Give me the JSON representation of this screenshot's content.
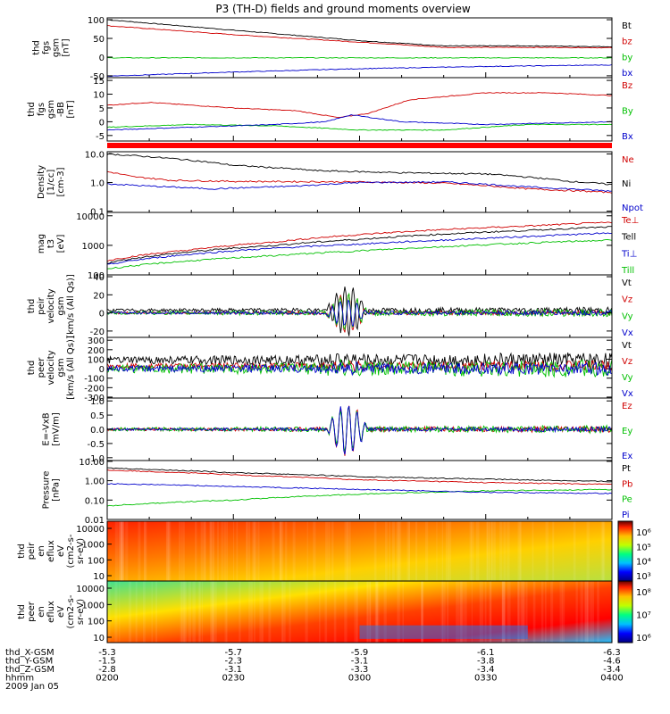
{
  "title": "P3 (TH-D) fields and ground moments overview",
  "chart_data": [
    {
      "id": "p1",
      "type": "line",
      "ylabel": [
        "thd",
        "fgs",
        "gsm",
        "[nT]"
      ],
      "yticks": [
        "100",
        "50",
        "0",
        "-50"
      ],
      "ylim": [
        -55,
        105
      ],
      "series": [
        {
          "name": "Bt",
          "color": "#000000",
          "x": [
            0,
            30,
            60,
            80,
            100,
            120
          ],
          "y": [
            100,
            72,
            44,
            30,
            30,
            28
          ]
        },
        {
          "name": "bz",
          "color": "#d00000",
          "x": [
            0,
            30,
            60,
            80,
            100,
            120
          ],
          "y": [
            84,
            60,
            40,
            26,
            26,
            25
          ]
        },
        {
          "name": "by",
          "color": "#00c000",
          "x": [
            0,
            60,
            120
          ],
          "y": [
            -2,
            -2,
            -2
          ]
        },
        {
          "name": "bx",
          "color": "#0000cc",
          "x": [
            0,
            30,
            60,
            90,
            120
          ],
          "y": [
            -51,
            -40,
            -31,
            -25,
            -21
          ]
        }
      ]
    },
    {
      "id": "p2",
      "type": "line",
      "ylabel": [
        "thd",
        "fgs",
        "gsm",
        "-BB",
        "[nT]"
      ],
      "yticks": [
        "15",
        "10",
        "5",
        "0",
        "-5"
      ],
      "ylim": [
        -7,
        16
      ],
      "series": [
        {
          "name": "Bz",
          "color": "#d00000",
          "x": [
            0,
            10,
            30,
            45,
            55,
            62,
            72,
            90,
            105,
            120
          ],
          "y": [
            6,
            7,
            5,
            4,
            1.5,
            3,
            8,
            10.5,
            10.5,
            9.5
          ]
        },
        {
          "name": "By",
          "color": "#00c000",
          "x": [
            0,
            20,
            40,
            60,
            80,
            100,
            120
          ],
          "y": [
            -2,
            -1,
            -1.5,
            -3,
            -3,
            -1,
            -1
          ]
        },
        {
          "name": "Bx",
          "color": "#0000cc",
          "x": [
            0,
            20,
            40,
            52,
            58,
            70,
            90,
            120
          ],
          "y": [
            -3,
            -2,
            -1,
            0,
            2.5,
            0,
            -1,
            0
          ]
        }
      ]
    },
    {
      "id": "p3",
      "type": "line",
      "log": true,
      "ylabel": [
        "Density",
        "[1/cc]",
        "[cm-3]"
      ],
      "yticks": [
        "10.0",
        "1.0",
        "0.1"
      ],
      "ylim": [
        0.09,
        12
      ],
      "series": [
        {
          "name": "Ne",
          "color": "#d00000",
          "x": [
            0,
            6,
            15,
            30,
            60,
            80,
            100,
            120
          ],
          "y": [
            2.4,
            1.6,
            1.2,
            1.1,
            1.05,
            0.95,
            0.6,
            0.45
          ]
        },
        {
          "name": "Ni",
          "color": "#000000",
          "x": [
            0,
            15,
            30,
            50,
            70,
            90,
            110,
            120
          ],
          "y": [
            10,
            7,
            4,
            2.6,
            2.2,
            2.0,
            1.1,
            0.85
          ]
        },
        {
          "name": "Npot",
          "color": "#0000cc",
          "x": [
            0,
            10,
            25,
            45,
            60,
            80,
            100,
            120
          ],
          "y": [
            0.9,
            0.75,
            0.6,
            0.75,
            1.0,
            1.05,
            0.7,
            0.5
          ]
        }
      ]
    },
    {
      "id": "p4",
      "type": "line",
      "log": true,
      "ylabel": [
        "mag",
        "t3",
        "[eV]"
      ],
      "yticks": [
        "10000",
        "1000",
        "100"
      ],
      "ylim": [
        100,
        13000
      ],
      "series": [
        {
          "name": "Te⊥",
          "color": "#d00000",
          "x": [
            0,
            20,
            40,
            60,
            80,
            100,
            120
          ],
          "y": [
            300,
            700,
            1300,
            2300,
            3400,
            4500,
            6000
          ]
        },
        {
          "name": "Tell",
          "color": "#000000",
          "x": [
            0,
            20,
            40,
            60,
            80,
            100,
            120
          ],
          "y": [
            250,
            600,
            1000,
            1600,
            2400,
            3200,
            4200
          ]
        },
        {
          "name": "Ti⊥",
          "color": "#0000cc",
          "x": [
            0,
            20,
            40,
            60,
            80,
            100,
            120
          ],
          "y": [
            220,
            500,
            800,
            1100,
            1500,
            2000,
            2600
          ]
        },
        {
          "name": "Till",
          "color": "#00c000",
          "x": [
            0,
            20,
            40,
            60,
            80,
            100,
            120
          ],
          "y": [
            160,
            300,
            450,
            650,
            900,
            1200,
            1500
          ]
        }
      ]
    },
    {
      "id": "p5",
      "type": "line",
      "ylabel": [
        "thd",
        "peir",
        "velocity",
        "gsm",
        "[km/s (All Qs)]"
      ],
      "yticks": [
        "40",
        "20",
        "0",
        "-20"
      ],
      "ylim": [
        -27,
        42
      ],
      "series": [
        {
          "name": "Vt",
          "color": "#000000",
          "base": 3,
          "amp": 2.5,
          "burst": 28
        },
        {
          "name": "Vz",
          "color": "#d00000",
          "base": 0,
          "amp": 2,
          "burst": 22
        },
        {
          "name": "Vy",
          "color": "#00c000",
          "base": 0,
          "amp": 3,
          "burst": 20
        },
        {
          "name": "Vx",
          "color": "#0000cc",
          "base": 0,
          "amp": 2,
          "burst": 15
        }
      ]
    },
    {
      "id": "p6",
      "type": "line",
      "ylabel": [
        "thd",
        "peer",
        "velocity",
        "gsm",
        "[km/s (All Qs)]"
      ],
      "yticks": [
        "300",
        "200",
        "100",
        "0",
        "-100",
        "-200",
        "-300"
      ],
      "ylim": [
        -310,
        330
      ],
      "series": [
        {
          "name": "Vt",
          "color": "#000000",
          "base": 90,
          "amp": 60,
          "burst": 40
        },
        {
          "name": "Vz",
          "color": "#d00000",
          "base": 30,
          "amp": 40,
          "burst": 30
        },
        {
          "name": "Vy",
          "color": "#00c000",
          "base": 0,
          "amp": 70,
          "burst": 40
        },
        {
          "name": "Vx",
          "color": "#0000cc",
          "base": 0,
          "amp": 50,
          "burst": 30
        }
      ]
    },
    {
      "id": "p7",
      "type": "line",
      "ylabel": [
        "E=-VxB",
        "[mV/m]"
      ],
      "yticks": [
        "1.0",
        "0.5",
        "0.0",
        "-0.5",
        "-1.0"
      ],
      "ylim": [
        -1.1,
        1.1
      ],
      "series": [
        {
          "name": "Ez",
          "color": "#d00000",
          "base": 0,
          "amp": 0.08,
          "burst": 0.9
        },
        {
          "name": "Ey",
          "color": "#00c000",
          "base": 0,
          "amp": 0.1,
          "burst": 0.8
        },
        {
          "name": "Ex",
          "color": "#0000cc",
          "base": 0,
          "amp": 0.06,
          "burst": 0.9
        }
      ]
    },
    {
      "id": "p8",
      "type": "line",
      "log": true,
      "ylabel": [
        "Pressure",
        "[nPa]"
      ],
      "yticks": [
        "10.00",
        "1.00",
        "0.10",
        "0.01"
      ],
      "ylim": [
        0.01,
        11
      ],
      "series": [
        {
          "name": "Pt",
          "color": "#000000",
          "x": [
            0,
            30,
            60,
            90,
            120
          ],
          "y": [
            4.5,
            2.6,
            1.6,
            1.2,
            0.9
          ]
        },
        {
          "name": "Pb",
          "color": "#d00000",
          "x": [
            0,
            30,
            60,
            90,
            120
          ],
          "y": [
            3.5,
            2.0,
            1.1,
            0.8,
            0.65
          ]
        },
        {
          "name": "Pe",
          "color": "#00c000",
          "x": [
            0,
            30,
            60,
            90,
            120
          ],
          "y": [
            0.05,
            0.1,
            0.2,
            0.3,
            0.35
          ]
        },
        {
          "name": "Pi",
          "color": "#0000cc",
          "x": [
            0,
            30,
            60,
            90,
            120
          ],
          "y": [
            0.7,
            0.5,
            0.35,
            0.25,
            0.22
          ]
        }
      ]
    },
    {
      "id": "p9",
      "type": "heatmap",
      "ylabel": [
        "thd",
        "peir",
        "en",
        "eflux",
        "eV",
        "(cm2-s-",
        "sr-eV)"
      ],
      "yticks": [
        "10000",
        "1000",
        "100",
        "10"
      ],
      "colorbar_ticks": [
        "10⁶",
        "10⁵",
        "10⁴",
        "10³"
      ]
    },
    {
      "id": "p10",
      "type": "heatmap",
      "ylabel": [
        "thd",
        "peer",
        "en",
        "eflux",
        "eV",
        "(cm2-s-",
        "sr-eV)"
      ],
      "yticks": [
        "10000",
        "1000",
        "100",
        "10"
      ],
      "colorbar_ticks": [
        "10⁸",
        "10⁷",
        "10⁶"
      ]
    }
  ],
  "x_axis": {
    "rows": [
      {
        "label": "thd_X-GSM",
        "values": [
          "-5.3",
          "-5.7",
          "-5.9",
          "-6.1",
          "-6.3"
        ]
      },
      {
        "label": "thd_Y-GSM",
        "values": [
          "-1.5",
          "-2.3",
          "-3.1",
          "-3.8",
          "-4.6"
        ]
      },
      {
        "label": "thd_Z-GSM",
        "values": [
          "-2.8",
          "-3.1",
          "-3.3",
          "-3.4",
          "-3.4"
        ]
      },
      {
        "label": "hhmm",
        "values": [
          "0200",
          "0230",
          "0300",
          "0330",
          "0400"
        ]
      }
    ],
    "date": "2009 Jan 05"
  }
}
